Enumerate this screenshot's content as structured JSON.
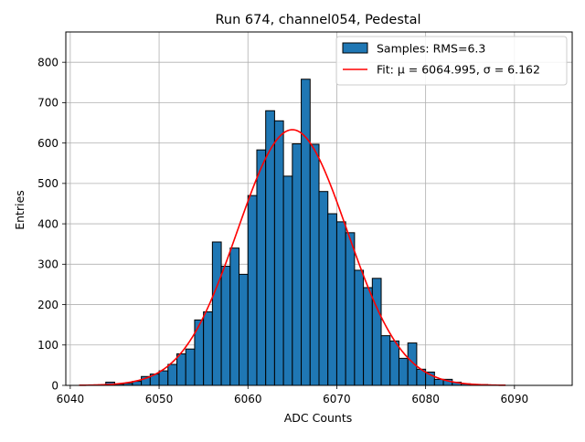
{
  "chart_data": {
    "type": "bar",
    "title": "Run 674, channel054, Pedestal",
    "xlabel": "ADC Counts",
    "ylabel": "Entries",
    "xlim": [
      6039.5,
      6096.5
    ],
    "ylim": [
      0,
      875
    ],
    "xticks": [
      6040,
      6050,
      6060,
      6070,
      6080,
      6090
    ],
    "yticks": [
      0,
      100,
      200,
      300,
      400,
      500,
      600,
      700,
      800
    ],
    "grid": true,
    "legend_position": "top-right",
    "bin_width": 1,
    "series": [
      {
        "name": "Samples: RMS=6.3",
        "kind": "histogram",
        "color": "#1f77b4",
        "edge_color": "#000000",
        "bins": [
          [
            6044,
            8
          ],
          [
            6045,
            3
          ],
          [
            6046,
            5
          ],
          [
            6047,
            10
          ],
          [
            6048,
            22
          ],
          [
            6049,
            28
          ],
          [
            6050,
            36
          ],
          [
            6051,
            52
          ],
          [
            6052,
            78
          ],
          [
            6053,
            90
          ],
          [
            6054,
            162
          ],
          [
            6055,
            182
          ],
          [
            6056,
            355
          ],
          [
            6057,
            295
          ],
          [
            6058,
            340
          ],
          [
            6059,
            275
          ],
          [
            6060,
            470
          ],
          [
            6061,
            583
          ],
          [
            6062,
            680
          ],
          [
            6063,
            655
          ],
          [
            6064,
            518
          ],
          [
            6065,
            598
          ],
          [
            6066,
            758
          ],
          [
            6067,
            597
          ],
          [
            6068,
            480
          ],
          [
            6069,
            425
          ],
          [
            6070,
            405
          ],
          [
            6071,
            378
          ],
          [
            6072,
            285
          ],
          [
            6073,
            242
          ],
          [
            6074,
            265
          ],
          [
            6075,
            123
          ],
          [
            6076,
            110
          ],
          [
            6077,
            67
          ],
          [
            6078,
            105
          ],
          [
            6079,
            40
          ],
          [
            6080,
            33
          ],
          [
            6081,
            15
          ],
          [
            6082,
            15
          ],
          [
            6083,
            8
          ],
          [
            6084,
            4
          ],
          [
            6085,
            2
          ],
          [
            6086,
            2
          ],
          [
            6087,
            1
          ]
        ]
      },
      {
        "name": "Fit: μ = 6064.995, σ = 6.162",
        "kind": "gaussian_fit",
        "color": "#ff0000",
        "mean": 6064.995,
        "sigma": 6.162,
        "amplitude": 633,
        "x_range": [
          6041,
          6089
        ]
      }
    ]
  }
}
